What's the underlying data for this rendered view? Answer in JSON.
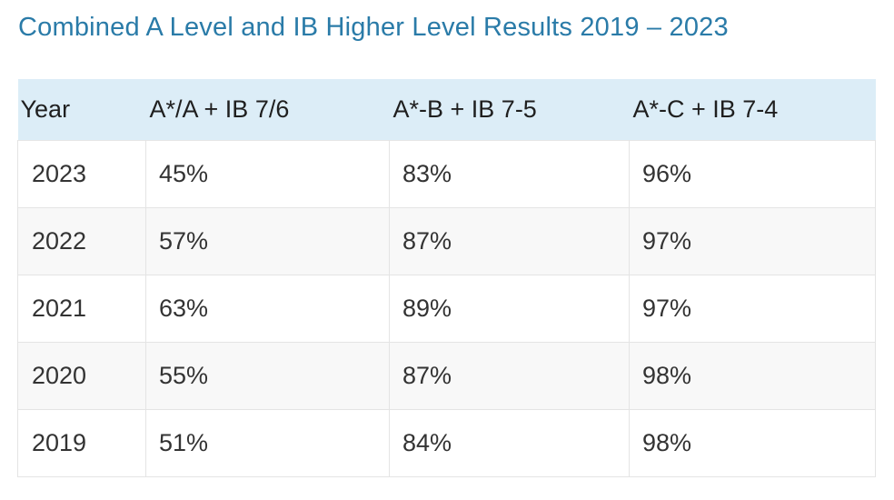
{
  "title": "Combined A Level and IB Higher Level Results 2019 – 2023",
  "table": {
    "headers": [
      "Year",
      "A*/A + IB 7/6",
      "A*-B + IB 7-5",
      "A*-C + IB 7-4"
    ],
    "rows": [
      [
        "2023",
        "45%",
        "83%",
        "96%"
      ],
      [
        "2022",
        "57%",
        "87%",
        "97%"
      ],
      [
        "2021",
        "63%",
        "89%",
        "97%"
      ],
      [
        "2020",
        "55%",
        "87%",
        "98%"
      ],
      [
        "2019",
        "51%",
        "84%",
        "98%"
      ]
    ]
  },
  "colors": {
    "title": "#2a7ba8",
    "header_bg": "#dcedf7",
    "row_alt_bg": "#f8f8f8",
    "border": "#e4e4e4"
  }
}
